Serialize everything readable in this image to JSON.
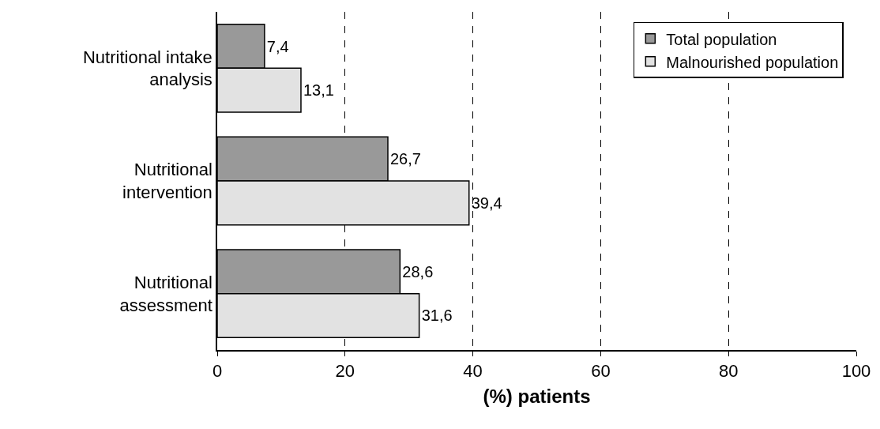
{
  "chart_data": {
    "type": "bar",
    "orientation": "horizontal",
    "xlabel": "(%) patients",
    "categories": [
      "Nutritional intake analysis",
      "Nutritional intervention",
      "Nutritional assessment"
    ],
    "series": [
      {
        "name": "Total population",
        "color": "#999999",
        "values": [
          7.4,
          26.7,
          28.6
        ],
        "value_labels": [
          "7,4",
          "26,7",
          "28,6"
        ]
      },
      {
        "name": "Malnourished population",
        "color": "#e2e2e2",
        "values": [
          13.1,
          39.4,
          31.6
        ],
        "value_labels": [
          "13,1",
          "39,4",
          "31,6"
        ]
      }
    ],
    "xlim": [
      0,
      100
    ],
    "xticks": [
      0,
      20,
      40,
      60,
      80,
      100
    ],
    "grid": "x",
    "legend": "top right"
  }
}
